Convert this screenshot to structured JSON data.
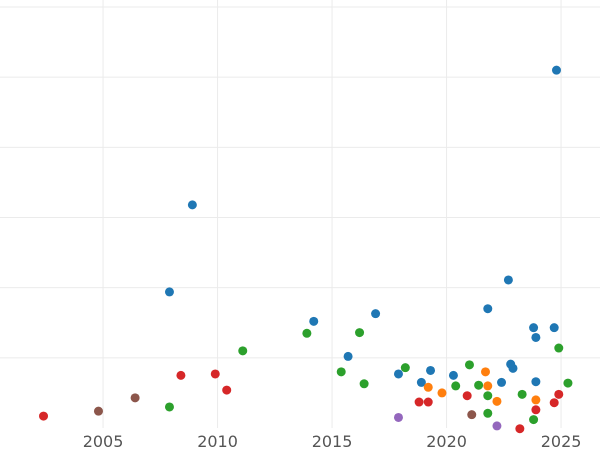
{
  "chart_data": {
    "type": "scatter",
    "title": "",
    "xlabel": "",
    "ylabel": "",
    "xlim": [
      2000.5,
      2026.7
    ],
    "ylim": [
      0,
      6.1
    ],
    "x_ticks": [
      2005,
      2010,
      2015,
      2020,
      2025
    ],
    "x_tick_labels": [
      "2005",
      "2010",
      "2015",
      "2020",
      "2025"
    ],
    "y_gridlines": [
      1,
      2,
      3,
      4,
      5,
      6
    ],
    "y_tick_labels_visible": false,
    "grid": true,
    "legend": "none",
    "colors": {
      "blue": "#1f77b4",
      "orange": "#ff7f0e",
      "green": "#2ca02c",
      "red": "#d62728",
      "purple": "#9467bd",
      "brown": "#8c564b"
    },
    "points": [
      {
        "x": 2002.4,
        "y": 0.17,
        "color": "red"
      },
      {
        "x": 2004.8,
        "y": 0.24,
        "color": "brown"
      },
      {
        "x": 2006.4,
        "y": 0.43,
        "color": "brown"
      },
      {
        "x": 2007.9,
        "y": 0.3,
        "color": "green"
      },
      {
        "x": 2007.9,
        "y": 1.94,
        "color": "blue"
      },
      {
        "x": 2008.4,
        "y": 0.75,
        "color": "red"
      },
      {
        "x": 2008.9,
        "y": 3.18,
        "color": "blue"
      },
      {
        "x": 2009.9,
        "y": 0.77,
        "color": "red"
      },
      {
        "x": 2010.4,
        "y": 0.54,
        "color": "red"
      },
      {
        "x": 2011.1,
        "y": 1.1,
        "color": "green"
      },
      {
        "x": 2013.9,
        "y": 1.35,
        "color": "green"
      },
      {
        "x": 2014.2,
        "y": 1.52,
        "color": "blue"
      },
      {
        "x": 2015.4,
        "y": 0.8,
        "color": "green"
      },
      {
        "x": 2015.7,
        "y": 1.02,
        "color": "blue"
      },
      {
        "x": 2016.2,
        "y": 1.36,
        "color": "green"
      },
      {
        "x": 2016.4,
        "y": 0.63,
        "color": "green"
      },
      {
        "x": 2016.9,
        "y": 1.63,
        "color": "blue"
      },
      {
        "x": 2017.9,
        "y": 0.15,
        "color": "purple"
      },
      {
        "x": 2017.9,
        "y": 0.77,
        "color": "blue"
      },
      {
        "x": 2018.2,
        "y": 0.86,
        "color": "green"
      },
      {
        "x": 2018.8,
        "y": 0.37,
        "color": "red"
      },
      {
        "x": 2018.9,
        "y": 0.65,
        "color": "blue"
      },
      {
        "x": 2019.2,
        "y": 0.37,
        "color": "red"
      },
      {
        "x": 2019.2,
        "y": 0.58,
        "color": "orange"
      },
      {
        "x": 2019.3,
        "y": 0.82,
        "color": "blue"
      },
      {
        "x": 2019.8,
        "y": 0.5,
        "color": "orange"
      },
      {
        "x": 2020.3,
        "y": 0.75,
        "color": "blue"
      },
      {
        "x": 2020.4,
        "y": 0.6,
        "color": "green"
      },
      {
        "x": 2020.9,
        "y": 0.46,
        "color": "red"
      },
      {
        "x": 2021.0,
        "y": 0.9,
        "color": "green"
      },
      {
        "x": 2021.1,
        "y": 0.19,
        "color": "brown"
      },
      {
        "x": 2021.4,
        "y": 0.61,
        "color": "green"
      },
      {
        "x": 2021.7,
        "y": 0.8,
        "color": "orange"
      },
      {
        "x": 2021.8,
        "y": 0.6,
        "color": "orange"
      },
      {
        "x": 2021.8,
        "y": 0.46,
        "color": "green"
      },
      {
        "x": 2021.8,
        "y": 0.21,
        "color": "green"
      },
      {
        "x": 2021.8,
        "y": 1.7,
        "color": "blue"
      },
      {
        "x": 2022.2,
        "y": 0.38,
        "color": "orange"
      },
      {
        "x": 2022.2,
        "y": 0.03,
        "color": "purple"
      },
      {
        "x": 2022.4,
        "y": 0.65,
        "color": "blue"
      },
      {
        "x": 2022.7,
        "y": 2.11,
        "color": "blue"
      },
      {
        "x": 2022.8,
        "y": 0.91,
        "color": "blue"
      },
      {
        "x": 2022.9,
        "y": 0.85,
        "color": "blue"
      },
      {
        "x": 2023.2,
        "y": -0.01,
        "color": "red"
      },
      {
        "x": 2023.3,
        "y": 0.48,
        "color": "green"
      },
      {
        "x": 2023.8,
        "y": 0.12,
        "color": "green"
      },
      {
        "x": 2023.8,
        "y": 1.43,
        "color": "blue"
      },
      {
        "x": 2023.9,
        "y": 0.66,
        "color": "blue"
      },
      {
        "x": 2023.9,
        "y": 1.29,
        "color": "blue"
      },
      {
        "x": 2023.9,
        "y": 0.26,
        "color": "red"
      },
      {
        "x": 2023.9,
        "y": 0.4,
        "color": "orange"
      },
      {
        "x": 2024.7,
        "y": 1.43,
        "color": "blue"
      },
      {
        "x": 2024.7,
        "y": 0.36,
        "color": "red"
      },
      {
        "x": 2024.8,
        "y": 5.1,
        "color": "blue"
      },
      {
        "x": 2024.9,
        "y": 1.14,
        "color": "green"
      },
      {
        "x": 2024.9,
        "y": 0.48,
        "color": "red"
      },
      {
        "x": 2025.3,
        "y": 0.64,
        "color": "green"
      }
    ]
  }
}
